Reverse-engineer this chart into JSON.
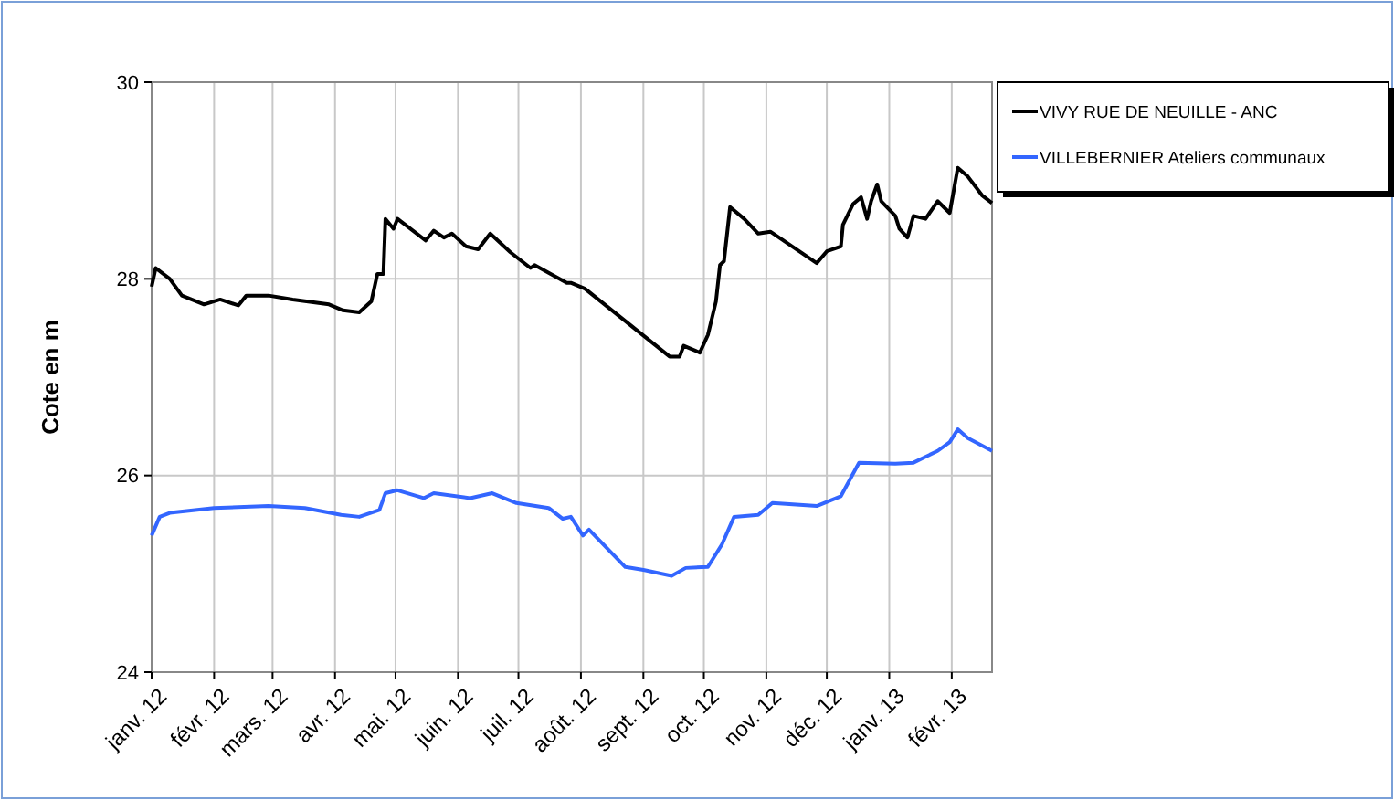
{
  "chart_data": {
    "type": "line",
    "ylabel": "Cote en m",
    "xlim": [
      "2012-01-01",
      "2013-02-21"
    ],
    "ylim": [
      24,
      30
    ],
    "yticks": [
      24,
      26,
      28,
      30
    ],
    "xticks": [
      {
        "value": "2012-01-01",
        "label": "janv. 12"
      },
      {
        "value": "2012-02-01",
        "label": "févr. 12"
      },
      {
        "value": "2012-03-01",
        "label": "mars. 12"
      },
      {
        "value": "2012-04-01",
        "label": "avr. 12"
      },
      {
        "value": "2012-05-01",
        "label": "mai. 12"
      },
      {
        "value": "2012-06-01",
        "label": "juin. 12"
      },
      {
        "value": "2012-07-01",
        "label": "juil. 12"
      },
      {
        "value": "2012-08-01",
        "label": "août. 12"
      },
      {
        "value": "2012-09-01",
        "label": "sept. 12"
      },
      {
        "value": "2012-10-01",
        "label": "oct. 12"
      },
      {
        "value": "2012-11-01",
        "label": "nov. 12"
      },
      {
        "value": "2012-12-01",
        "label": "déc. 12"
      },
      {
        "value": "2013-01-01",
        "label": "janv. 13"
      },
      {
        "value": "2013-02-01",
        "label": "févr. 13"
      }
    ],
    "grid": true,
    "legend": "top right",
    "line_style": "solid",
    "series": [
      {
        "name": "VIVY RUE DE NEUILLE - ANC",
        "color": "#000000",
        "x": [
          "2012-01-01",
          "2012-01-03",
          "2012-01-10",
          "2012-01-16",
          "2012-01-27",
          "2012-02-04",
          "2012-02-13",
          "2012-02-17",
          "2012-02-28",
          "2012-03-11",
          "2012-03-29",
          "2012-04-05",
          "2012-04-13",
          "2012-04-19",
          "2012-04-22",
          "2012-04-25",
          "2012-04-26",
          "2012-04-30",
          "2012-05-02",
          "2012-05-16",
          "2012-05-20",
          "2012-05-25",
          "2012-05-29",
          "2012-06-05",
          "2012-06-11",
          "2012-06-17",
          "2012-06-27",
          "2012-07-07",
          "2012-07-09",
          "2012-07-25",
          "2012-07-27",
          "2012-08-03",
          "2012-09-14",
          "2012-09-19",
          "2012-09-21",
          "2012-09-29",
          "2012-10-03",
          "2012-10-07",
          "2012-10-09",
          "2012-10-11",
          "2012-10-14",
          "2012-10-21",
          "2012-10-28",
          "2012-11-03",
          "2012-11-26",
          "2012-12-01",
          "2012-12-08",
          "2012-12-09",
          "2012-12-14",
          "2012-12-18",
          "2012-12-21",
          "2012-12-23",
          "2012-12-26",
          "2012-12-28",
          "2013-01-04",
          "2013-01-06",
          "2013-01-10",
          "2013-01-13",
          "2013-01-19",
          "2013-01-25",
          "2013-01-31",
          "2013-02-04",
          "2013-02-09",
          "2013-02-16",
          "2013-02-21"
        ],
        "values": [
          27.92,
          28.11,
          28.0,
          27.83,
          27.74,
          27.79,
          27.73,
          27.83,
          27.83,
          27.79,
          27.74,
          27.68,
          27.66,
          27.77,
          28.05,
          28.05,
          28.61,
          28.51,
          28.61,
          28.39,
          28.49,
          28.42,
          28.46,
          28.33,
          28.3,
          28.46,
          28.27,
          28.11,
          28.14,
          27.96,
          27.96,
          27.9,
          27.21,
          27.21,
          27.32,
          27.25,
          27.43,
          27.77,
          28.14,
          28.18,
          28.73,
          28.61,
          28.46,
          28.48,
          28.16,
          28.28,
          28.33,
          28.55,
          28.76,
          28.83,
          28.61,
          28.79,
          28.96,
          28.79,
          28.64,
          28.51,
          28.42,
          28.64,
          28.61,
          28.79,
          28.67,
          29.13,
          29.04,
          28.85,
          28.77
        ]
      },
      {
        "name": "VILLEBERNIER Ateliers communaux",
        "color": "#3366ff",
        "x": [
          "2012-01-01",
          "2012-01-05",
          "2012-01-10",
          "2012-02-01",
          "2012-02-28",
          "2012-03-17",
          "2012-04-04",
          "2012-04-13",
          "2012-04-23",
          "2012-04-26",
          "2012-05-02",
          "2012-05-15",
          "2012-05-20",
          "2012-06-07",
          "2012-06-18",
          "2012-06-30",
          "2012-07-16",
          "2012-07-23",
          "2012-07-27",
          "2012-08-02",
          "2012-08-05",
          "2012-08-14",
          "2012-08-23",
          "2012-09-01",
          "2012-09-15",
          "2012-09-22",
          "2012-10-03",
          "2012-10-10",
          "2012-10-16",
          "2012-10-28",
          "2012-11-04",
          "2012-11-26",
          "2012-12-08",
          "2012-12-17",
          "2013-01-04",
          "2013-01-13",
          "2013-01-25",
          "2013-01-31",
          "2013-02-04",
          "2013-02-09",
          "2013-02-21"
        ],
        "values": [
          25.39,
          25.58,
          25.62,
          25.67,
          25.69,
          25.67,
          25.6,
          25.58,
          25.65,
          25.82,
          25.85,
          25.77,
          25.82,
          25.77,
          25.82,
          25.72,
          25.67,
          25.56,
          25.58,
          25.39,
          25.45,
          25.26,
          25.07,
          25.04,
          24.98,
          25.06,
          25.07,
          25.3,
          25.58,
          25.6,
          25.72,
          25.69,
          25.79,
          26.13,
          26.12,
          26.13,
          26.25,
          26.34,
          26.47,
          26.38,
          26.25
        ]
      }
    ]
  }
}
